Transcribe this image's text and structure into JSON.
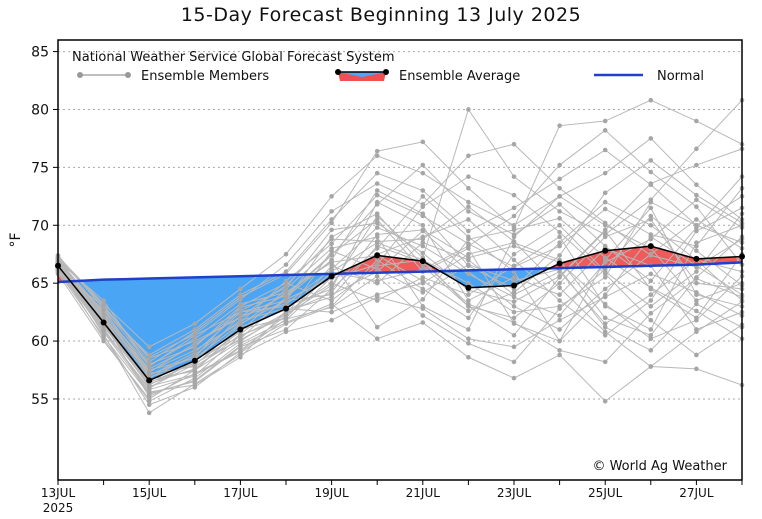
{
  "chart_data": {
    "type": "line",
    "title": "15-Day Forecast Beginning 13 July 2025",
    "ylabel": "°F",
    "ylim": [
      48,
      86
    ],
    "yticks": [
      55,
      60,
      65,
      70,
      75,
      80,
      85
    ],
    "x_dates": [
      "13JUL",
      "14JUL",
      "15JUL",
      "16JUL",
      "17JUL",
      "18JUL",
      "19JUL",
      "20JUL",
      "21JUL",
      "22JUL",
      "23JUL",
      "24JUL",
      "25JUL",
      "26JUL",
      "27JUL",
      "28JUL"
    ],
    "xtick_labels": [
      {
        "date": "13JUL",
        "label": "13JUL",
        "sub": "2025"
      },
      {
        "date": "15JUL",
        "label": "15JUL",
        "sub": ""
      },
      {
        "date": "17JUL",
        "label": "17JUL",
        "sub": ""
      },
      {
        "date": "19JUL",
        "label": "19JUL",
        "sub": ""
      },
      {
        "date": "21JUL",
        "label": "21JUL",
        "sub": ""
      },
      {
        "date": "23JUL",
        "label": "23JUL",
        "sub": ""
      },
      {
        "date": "25JUL",
        "label": "25JUL",
        "sub": ""
      },
      {
        "date": "27JUL",
        "label": "27JUL",
        "sub": ""
      }
    ],
    "legend": {
      "source": "National Weather Service Global Forecast System",
      "members_label": "Ensemble Members",
      "average_label": "Ensemble Average",
      "normal_label": "Normal"
    },
    "credit": "© World Ag Weather",
    "series": [
      {
        "name": "Ensemble Average",
        "values": [
          66.5,
          61.6,
          56.6,
          58.3,
          61.0,
          62.8,
          65.6,
          67.4,
          66.9,
          64.6,
          64.8,
          66.7,
          67.8,
          68.2,
          67.1,
          67.3
        ]
      },
      {
        "name": "Normal",
        "values": [
          65.1,
          65.3,
          65.4,
          65.5,
          65.6,
          65.7,
          65.8,
          65.9,
          66.0,
          66.1,
          66.2,
          66.3,
          66.4,
          66.5,
          66.6,
          66.8
        ]
      }
    ],
    "members": [
      [
        66.5,
        61.0,
        55.8,
        57.0,
        60.5,
        62.0,
        66.0,
        68.5,
        67.0,
        63.0,
        62.0,
        65.0,
        69.0,
        70.5,
        65.0,
        64.5
      ],
      [
        66.8,
        62.0,
        57.5,
        58.5,
        61.5,
        63.5,
        64.0,
        66.0,
        69.5,
        66.0,
        63.0,
        61.0,
        64.5,
        67.5,
        70.5,
        68.0
      ],
      [
        67.2,
        60.5,
        54.5,
        56.0,
        59.0,
        61.5,
        63.0,
        67.0,
        64.5,
        62.0,
        67.5,
        70.0,
        66.0,
        63.0,
        66.0,
        71.0
      ],
      [
        66.0,
        63.0,
        58.5,
        60.0,
        62.0,
        64.0,
        67.5,
        70.5,
        66.0,
        68.0,
        61.5,
        60.0,
        67.0,
        71.5,
        64.0,
        63.0
      ],
      [
        66.3,
        61.5,
        56.5,
        57.5,
        60.0,
        62.5,
        65.0,
        63.5,
        65.5,
        64.0,
        66.5,
        69.0,
        63.0,
        61.0,
        68.5,
        70.0
      ],
      [
        67.0,
        62.5,
        57.0,
        59.0,
        62.5,
        63.0,
        64.5,
        72.0,
        70.0,
        63.5,
        65.5,
        64.0,
        68.0,
        66.5,
        61.0,
        62.5
      ],
      [
        65.8,
        60.0,
        55.0,
        57.5,
        61.0,
        62.0,
        66.5,
        65.0,
        68.5,
        67.0,
        64.0,
        66.0,
        61.5,
        64.0,
        67.0,
        66.0
      ],
      [
        66.6,
        61.8,
        56.0,
        58.0,
        60.8,
        64.5,
        68.0,
        69.0,
        63.0,
        61.0,
        69.0,
        72.5,
        70.0,
        68.0,
        63.5,
        65.0
      ],
      [
        67.4,
        62.8,
        58.0,
        59.5,
        63.0,
        65.0,
        63.5,
        66.5,
        67.0,
        65.0,
        62.5,
        63.0,
        65.5,
        72.0,
        70.0,
        68.5
      ],
      [
        66.2,
        60.8,
        55.5,
        56.5,
        59.5,
        61.0,
        64.5,
        68.0,
        72.5,
        69.0,
        66.0,
        60.0,
        64.0,
        69.0,
        66.5,
        64.0
      ],
      [
        66.9,
        63.5,
        57.8,
        60.5,
        62.5,
        63.5,
        69.0,
        71.0,
        66.5,
        63.0,
        60.5,
        65.5,
        69.5,
        64.5,
        62.0,
        67.5
      ],
      [
        65.9,
        61.2,
        56.8,
        58.8,
        61.8,
        62.8,
        62.5,
        64.0,
        65.0,
        67.5,
        68.5,
        67.0,
        62.0,
        60.5,
        65.5,
        69.0
      ],
      [
        67.1,
        62.2,
        57.2,
        57.8,
        60.2,
        63.8,
        67.0,
        73.0,
        71.0,
        66.5,
        64.5,
        68.5,
        72.0,
        70.0,
        67.0,
        63.5
      ],
      [
        66.4,
        60.2,
        54.8,
        56.8,
        59.8,
        61.8,
        65.5,
        67.5,
        69.0,
        70.5,
        67.0,
        63.5,
        60.5,
        63.5,
        69.5,
        71.5
      ],
      [
        66.7,
        62.6,
        58.8,
        61.0,
        64.0,
        66.0,
        70.5,
        74.5,
        73.0,
        69.5,
        71.5,
        74.0,
        76.5,
        73.5,
        70.0,
        72.5
      ],
      [
        66.1,
        61.4,
        56.2,
        58.2,
        62.2,
        63.2,
        66.2,
        69.8,
        68.2,
        65.8,
        63.8,
        62.2,
        66.8,
        68.8,
        72.2,
        69.8
      ],
      [
        66.6,
        60.6,
        53.8,
        56.3,
        58.8,
        60.8,
        61.8,
        63.8,
        62.8,
        60.2,
        59.5,
        61.8,
        63.8,
        65.8,
        64.2,
        62.2
      ],
      [
        67.3,
        63.2,
        59.5,
        61.5,
        64.5,
        67.5,
        72.5,
        76.0,
        74.5,
        72.0,
        70.0,
        72.5,
        74.5,
        77.5,
        73.5,
        70.5
      ],
      [
        66.0,
        61.6,
        55.2,
        57.2,
        59.2,
        62.2,
        67.8,
        66.2,
        64.2,
        66.6,
        65.2,
        66.2,
        61.2,
        59.2,
        63.2,
        61.2
      ],
      [
        66.8,
        62.4,
        57.6,
        59.6,
        62.6,
        64.6,
        69.6,
        70.2,
        67.6,
        64.4,
        63.4,
        65.6,
        69.6,
        73.6,
        75.2,
        76.6
      ],
      [
        66.3,
        61.9,
        56.9,
        57.9,
        61.4,
        64.2,
        66.9,
        61.2,
        63.6,
        68.8,
        69.6,
        70.6,
        67.2,
        64.6,
        62.6,
        60.2
      ],
      [
        67.0,
        62.0,
        57.4,
        59.2,
        61.6,
        65.2,
        68.4,
        72.6,
        70.8,
        68.4,
        66.4,
        68.2,
        71.4,
        69.2,
        68.2,
        73.2
      ],
      [
        66.5,
        61.1,
        55.6,
        56.2,
        58.6,
        62.6,
        63.8,
        68.2,
        66.8,
        63.2,
        61.6,
        59.2,
        58.2,
        62.4,
        65.4,
        63.8
      ],
      [
        66.2,
        61.7,
        56.3,
        57.6,
        60.6,
        63.6,
        65.4,
        66.6,
        71.6,
        74.2,
        72.6,
        69.4,
        65.8,
        61.8,
        58.8,
        61.4
      ],
      [
        66.9,
        62.3,
        57.9,
        60.2,
        63.2,
        64.2,
        66.8,
        67.4,
        65.2,
        62.6,
        64.2,
        67.4,
        72.8,
        75.6,
        72.6,
        70.2
      ],
      [
        66.4,
        60.9,
        55.9,
        58.4,
        60.4,
        62.4,
        64.2,
        69.2,
        69.6,
        67.2,
        68.2,
        66.8,
        63.2,
        60.2,
        61.8,
        65.6
      ],
      [
        66.7,
        62.1,
        57.1,
        58.6,
        62.9,
        63.9,
        67.4,
        71.8,
        75.2,
        71.2,
        69.2,
        71.8,
        68.2,
        65.2,
        69.8,
        74.2
      ],
      [
        66.1,
        61.3,
        56.1,
        57.1,
        59.1,
        61.9,
        62.9,
        65.6,
        62.2,
        59.8,
        58.2,
        62.8,
        66.2,
        70.8,
        67.8,
        64.8
      ],
      [
        67.2,
        62.9,
        58.6,
        60.6,
        63.6,
        66.6,
        71.2,
        73.6,
        71.8,
        76.0,
        77.0,
        73.2,
        70.2,
        67.4,
        66.4,
        68.8
      ],
      [
        66.6,
        61.5,
        56.7,
        57.4,
        61.2,
        62.7,
        65.9,
        65.2,
        66.2,
        68.2,
        70.8,
        75.2,
        78.2,
        74.6,
        71.6,
        66.6
      ],
      [
        66.3,
        62.7,
        57.3,
        59.8,
        62.1,
        64.8,
        68.8,
        68.6,
        68.8,
        71.6,
        68.6,
        64.6,
        60.8,
        57.8,
        60.8,
        63.4
      ],
      [
        66.8,
        61.9,
        56.4,
        58.1,
        60.1,
        62.3,
        64.8,
        70.8,
        67.2,
        80.0,
        74.2,
        71.2,
        69.2,
        72.2,
        76.6,
        80.8
      ],
      [
        66.0,
        60.4,
        55.4,
        56.6,
        59.6,
        61.6,
        63.2,
        60.2,
        61.6,
        58.6,
        56.8,
        58.8,
        54.8,
        57.8,
        57.6,
        56.2
      ],
      [
        67.1,
        63.1,
        58.2,
        60.8,
        63.8,
        65.8,
        70.2,
        76.4,
        77.2,
        73.2,
        69.8,
        78.6,
        79.0,
        80.8,
        79.0,
        77.0
      ]
    ]
  }
}
